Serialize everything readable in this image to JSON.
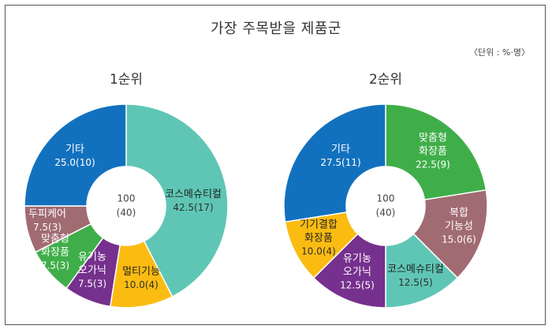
{
  "title": "가장 주목받을 제품군",
  "unit": "〈단위 : %·명〉",
  "chart_data": [
    {
      "type": "pie",
      "donut": true,
      "subtitle": "1순위",
      "center": [
        "100",
        "(40)"
      ],
      "slices": [
        {
          "label": "코스메슈티컬",
          "value": 42.5,
          "count": 17,
          "text": "42.5(17)",
          "color": "#5fc6b5"
        },
        {
          "label": "멀티기능",
          "value": 10.0,
          "count": 4,
          "text": "10.0(4)",
          "color": "#fbbc12"
        },
        {
          "label": "유기농 오가닉",
          "value": 7.5,
          "count": 3,
          "text": "7.5(3)",
          "color": "#76308d"
        },
        {
          "label": "맞춤형 화장품",
          "value": 7.5,
          "count": 3,
          "text": "7.5(3)",
          "color": "#3fae49"
        },
        {
          "label": "두피케어",
          "value": 7.5,
          "count": 3,
          "text": "7.5(3)",
          "color": "#a16b72"
        },
        {
          "label": "기타",
          "value": 25.0,
          "count": 10,
          "text": "25.0(10)",
          "color": "#1271be"
        }
      ]
    },
    {
      "type": "pie",
      "donut": true,
      "subtitle": "2순위",
      "center": [
        "100",
        "(40)"
      ],
      "slices": [
        {
          "label": "맞춤형 화장품",
          "value": 22.5,
          "count": 9,
          "text": "22.5(9)",
          "color": "#3fae49"
        },
        {
          "label": "복합 기능성",
          "value": 15.0,
          "count": 6,
          "text": "15.0(6)",
          "color": "#a16b72"
        },
        {
          "label": "코스메슈티컬",
          "value": 12.5,
          "count": 5,
          "text": "12.5(5)",
          "color": "#5fc6b5"
        },
        {
          "label": "유기농 오가닉",
          "value": 12.5,
          "count": 5,
          "text": "12.5(5)",
          "color": "#76308d"
        },
        {
          "label": "기기결합 화장품",
          "value": 10.0,
          "count": 4,
          "text": "10.0(4)",
          "color": "#fbbc12"
        },
        {
          "label": "기타",
          "value": 27.5,
          "count": 11,
          "text": "27.5(11)",
          "color": "#1271be"
        }
      ]
    }
  ]
}
